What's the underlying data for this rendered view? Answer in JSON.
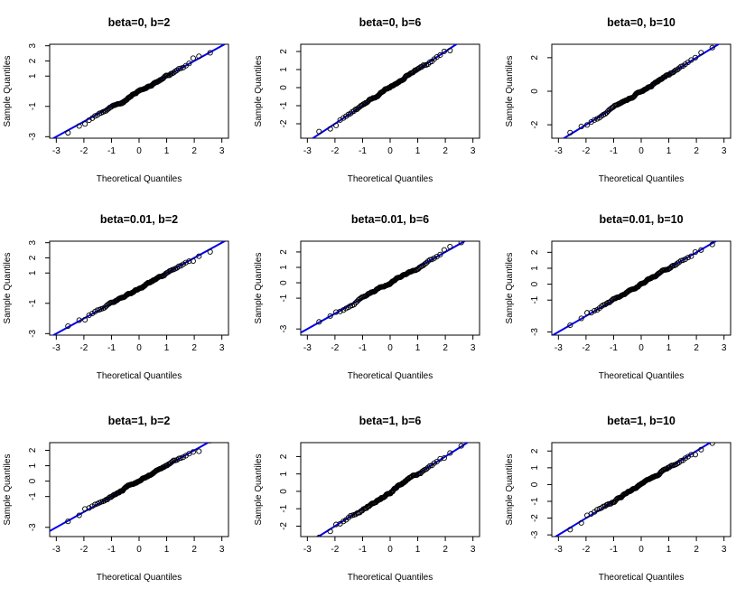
{
  "colors": {
    "line": "#0000ee",
    "points": "#000000",
    "axis": "#000000",
    "background": "#ffffff"
  },
  "chart_data": [
    {
      "type": "scatter",
      "title": "beta=0, b=2",
      "xlabel": "Theoretical Quantiles",
      "ylabel": "Sample Quantiles",
      "xlim": [
        -3,
        3
      ],
      "ylim": [
        -3.1,
        3.1
      ],
      "xticks": [
        -3,
        -2,
        -1,
        0,
        1,
        2,
        3
      ],
      "yticks": [
        -3,
        -1,
        1,
        2,
        3
      ],
      "ref_line": [
        0.0,
        1.0
      ]
    },
    {
      "type": "scatter",
      "title": "beta=0, b=6",
      "xlabel": "Theoretical Quantiles",
      "ylabel": "Sample Quantiles",
      "xlim": [
        -3,
        3
      ],
      "ylim": [
        -2.8,
        2.4
      ],
      "xticks": [
        -3,
        -2,
        -1,
        0,
        1,
        2,
        3
      ],
      "yticks": [
        -2,
        -1,
        0,
        1,
        2
      ],
      "ref_line": [
        0.0,
        1.0
      ]
    },
    {
      "type": "scatter",
      "title": "beta=0, b=10",
      "xlabel": "Theoretical Quantiles",
      "ylabel": "Sample Quantiles",
      "xlim": [
        -3,
        3
      ],
      "ylim": [
        -2.8,
        2.8
      ],
      "xticks": [
        -3,
        -2,
        -1,
        0,
        1,
        2,
        3
      ],
      "yticks": [
        -2,
        0,
        2
      ],
      "ref_line": [
        0.0,
        1.0
      ]
    },
    {
      "type": "scatter",
      "title": "beta=0.01, b=2",
      "xlabel": "Theoretical Quantiles",
      "ylabel": "Sample Quantiles",
      "xlim": [
        -3,
        3
      ],
      "ylim": [
        -3.1,
        3.1
      ],
      "xticks": [
        -3,
        -2,
        -1,
        0,
        1,
        2,
        3
      ],
      "yticks": [
        -3,
        -1,
        1,
        2,
        3
      ],
      "ref_line": [
        0.0,
        1.0
      ]
    },
    {
      "type": "scatter",
      "title": "beta=0.01, b=6",
      "xlabel": "Theoretical Quantiles",
      "ylabel": "Sample Quantiles",
      "xlim": [
        -3,
        3
      ],
      "ylim": [
        -3.4,
        2.7
      ],
      "xticks": [
        -3,
        -2,
        -1,
        0,
        1,
        2,
        3
      ],
      "yticks": [
        -3,
        -1,
        0,
        1,
        2
      ],
      "ref_line": [
        0.0,
        1.0
      ]
    },
    {
      "type": "scatter",
      "title": "beta=0.01, b=10",
      "xlabel": "Theoretical Quantiles",
      "ylabel": "Sample Quantiles",
      "xlim": [
        -3,
        3
      ],
      "ylim": [
        -3.2,
        2.7
      ],
      "xticks": [
        -3,
        -2,
        -1,
        0,
        1,
        2,
        3
      ],
      "yticks": [
        -3,
        -1,
        0,
        1,
        2
      ],
      "ref_line": [
        0.0,
        1.0
      ]
    },
    {
      "type": "scatter",
      "title": "beta=1, b=2",
      "xlabel": "Theoretical Quantiles",
      "ylabel": "Sample Quantiles",
      "xlim": [
        -3,
        3
      ],
      "ylim": [
        -3.6,
        2.5
      ],
      "xticks": [
        -3,
        -2,
        -1,
        0,
        1,
        2,
        3
      ],
      "yticks": [
        -3,
        -1,
        0,
        1,
        2
      ],
      "ref_line": [
        0.0,
        1.0
      ]
    },
    {
      "type": "scatter",
      "title": "beta=1, b=6",
      "xlabel": "Theoretical Quantiles",
      "ylabel": "Sample Quantiles",
      "xlim": [
        -3,
        3
      ],
      "ylim": [
        -2.6,
        2.8
      ],
      "xticks": [
        -3,
        -2,
        -1,
        0,
        1,
        2,
        3
      ],
      "yticks": [
        -2,
        -1,
        0,
        1,
        2
      ],
      "ref_line": [
        0.0,
        1.0
      ]
    },
    {
      "type": "scatter",
      "title": "beta=1, b=10",
      "xlabel": "Theoretical Quantiles",
      "ylabel": "Sample Quantiles",
      "xlim": [
        -3,
        3
      ],
      "ylim": [
        -3.1,
        2.5
      ],
      "xticks": [
        -3,
        -2,
        -1,
        0,
        1,
        2,
        3
      ],
      "yticks": [
        -3,
        -2,
        -1,
        0,
        1,
        2
      ],
      "ref_line": [
        0.0,
        1.0
      ]
    }
  ]
}
